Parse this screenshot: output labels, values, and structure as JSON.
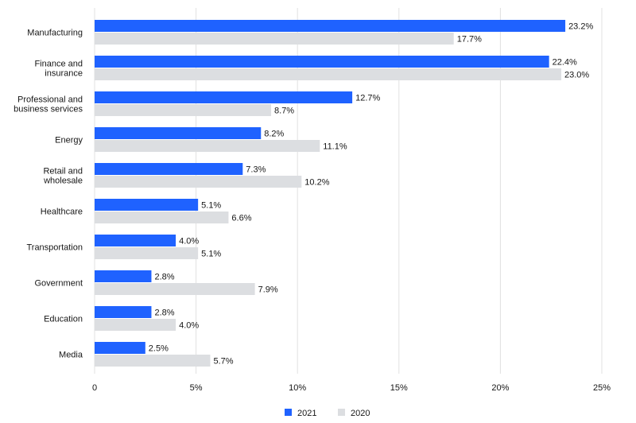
{
  "chart_data": {
    "type": "bar",
    "orientation": "horizontal",
    "title": "",
    "xlabel": "",
    "ylabel": "",
    "categories": [
      [
        "Manufacturing"
      ],
      [
        "Finance and",
        "insurance"
      ],
      [
        "Professional and",
        "business services"
      ],
      [
        "Energy"
      ],
      [
        "Retail and",
        "wholesale"
      ],
      [
        "Healthcare"
      ],
      [
        "Transportation"
      ],
      [
        "Government"
      ],
      [
        "Education"
      ],
      [
        "Media"
      ]
    ],
    "series": [
      {
        "name": "2021",
        "color": "#1f62ff",
        "values": [
          23.2,
          22.4,
          12.7,
          8.2,
          7.3,
          5.1,
          4.0,
          2.8,
          2.8,
          2.5
        ],
        "labels": [
          "23.2%",
          "22.4%",
          "12.7%",
          "8.2%",
          "7.3%",
          "5.1%",
          "4.0%",
          "2.8%",
          "2.8%",
          "2.5%"
        ]
      },
      {
        "name": "2020",
        "color": "#dcdee1",
        "values": [
          17.7,
          23.0,
          8.7,
          11.1,
          10.2,
          6.6,
          5.1,
          7.9,
          4.0,
          5.7
        ],
        "labels": [
          "17.7%",
          "23.0%",
          "8.7%",
          "11.1%",
          "10.2%",
          "6.6%",
          "5.1%",
          "7.9%",
          "4.0%",
          "5.7%"
        ]
      }
    ],
    "xlim": [
      0,
      25
    ],
    "xticks": [
      0,
      5,
      10,
      15,
      20,
      25
    ],
    "xtick_labels": [
      "0",
      "5%",
      "10%",
      "15%",
      "20%",
      "25%"
    ],
    "grid": true,
    "legend_position": "bottom-center"
  }
}
